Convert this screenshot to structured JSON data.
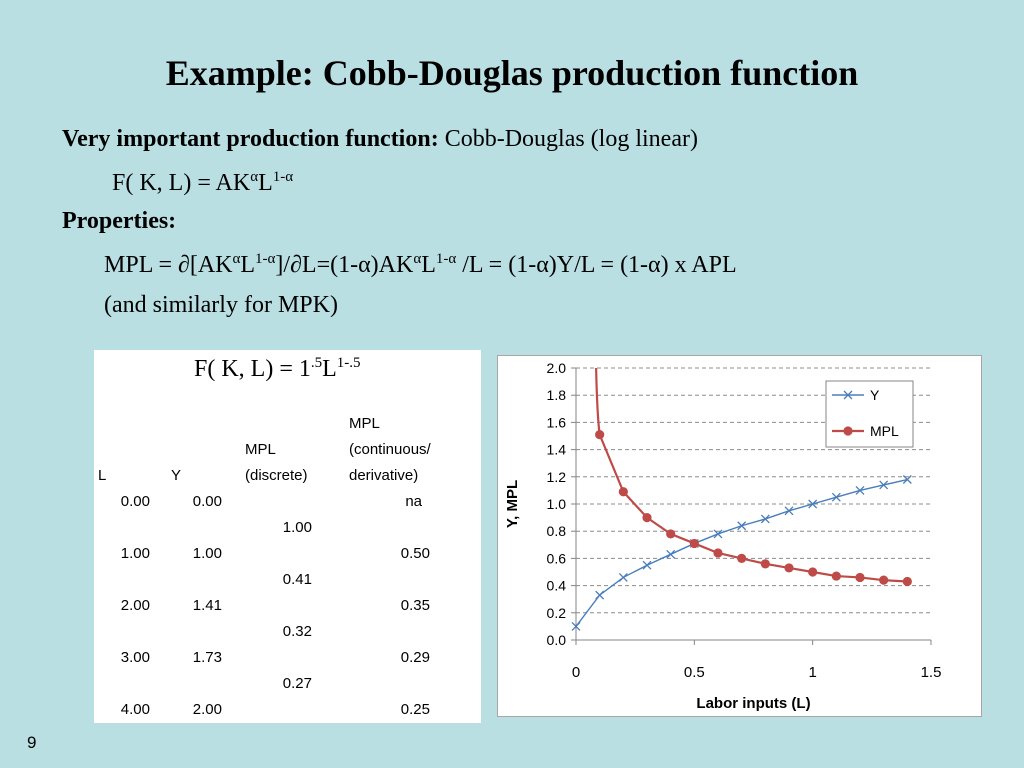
{
  "slide": {
    "title": "Example: Cobb-Douglas production function",
    "line1_bold": "Very important production function:",
    "line1_rest": " Cobb-Douglas (log linear)",
    "formula1_base": "F( K, L) = AK",
    "formula1_sup1": "α",
    "formula1_mid": "L",
    "formula1_sup2": "1-α",
    "properties_label": "Properties:",
    "mpl_p1": "MPL = ∂[AK",
    "mpl_sup1": "α",
    "mpl_p2": "L",
    "mpl_sup2": "1-α",
    "mpl_p3": "]/∂L=(1-α)AK",
    "mpl_sup3": "α",
    "mpl_p4": "L",
    "mpl_sup4": "1-α",
    "mpl_p5": " /L = (1-α)Y/L = (1-α) x APL",
    "similarly": "(and similarly for MPK)",
    "slide_number": "9"
  },
  "table": {
    "formula_base": "F( K, L) = 1",
    "formula_sup1": ".5",
    "formula_mid": "L",
    "formula_sup2": "1-.5",
    "headers": {
      "l": "L",
      "y": "Y",
      "mpl_discrete_1": "MPL",
      "mpl_discrete_2": "(discrete)",
      "mpl_cont_1": "MPL",
      "mpl_cont_2": "(continuous/",
      "mpl_cont_3": "derivative)"
    },
    "rows": [
      {
        "l": "0.00",
        "y": "0.00",
        "mpl_c": "na"
      },
      {
        "l": "1.00",
        "y": "1.00",
        "mpl_c": "0.50"
      },
      {
        "l": "2.00",
        "y": "1.41",
        "mpl_c": "0.35"
      },
      {
        "l": "3.00",
        "y": "1.73",
        "mpl_c": "0.29"
      },
      {
        "l": "4.00",
        "y": "2.00",
        "mpl_c": "0.25"
      }
    ],
    "discrete": [
      "1.00",
      "0.41",
      "0.32",
      "0.27"
    ]
  },
  "chart_data": {
    "type": "line",
    "xlabel": "Labor inputs (L)",
    "ylabel": "Y, MPL",
    "xlim": [
      0,
      1.5
    ],
    "ylim": [
      0,
      2.0
    ],
    "xticks": [
      "0",
      "0.5",
      "1",
      "1.5"
    ],
    "yticks": [
      "0.0",
      "0.2",
      "0.4",
      "0.6",
      "0.8",
      "1.0",
      "1.2",
      "1.4",
      "1.6",
      "1.8",
      "2.0"
    ],
    "grid": "horizontal-dashed",
    "legend_position": "top-right",
    "series": [
      {
        "name": "Y",
        "color": "#4a7ebb",
        "marker": "x",
        "x": [
          0,
          0.1,
          0.2,
          0.3,
          0.4,
          0.5,
          0.6,
          0.7,
          0.8,
          0.9,
          1.0,
          1.1,
          1.2,
          1.3,
          1.4
        ],
        "values": [
          0.1,
          0.33,
          0.46,
          0.55,
          0.63,
          0.71,
          0.78,
          0.84,
          0.89,
          0.95,
          1.0,
          1.05,
          1.1,
          1.14,
          1.18
        ]
      },
      {
        "name": "MPL",
        "color": "#be4b48",
        "marker": "circle",
        "x": [
          0.1,
          0.2,
          0.3,
          0.4,
          0.5,
          0.6,
          0.7,
          0.8,
          0.9,
          1.0,
          1.1,
          1.2,
          1.3,
          1.4
        ],
        "values": [
          1.51,
          1.09,
          0.9,
          0.78,
          0.71,
          0.64,
          0.6,
          0.56,
          0.53,
          0.5,
          0.47,
          0.46,
          0.44,
          0.43
        ],
        "curve_start": {
          "x": 0.085,
          "y": 2.0
        }
      }
    ]
  }
}
